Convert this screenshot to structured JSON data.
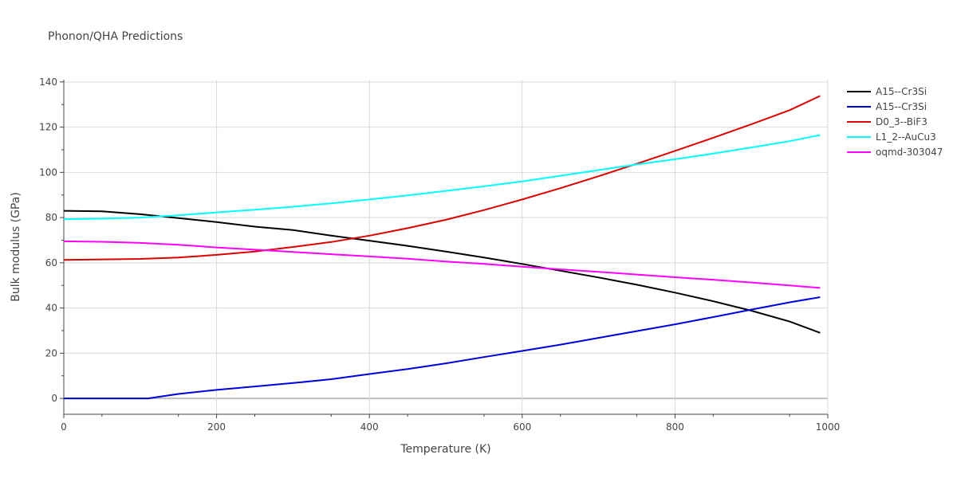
{
  "chart_data": {
    "type": "line",
    "title": "Phonon/QHA Predictions",
    "xlabel": "Temperature (K)",
    "ylabel": "Bulk modulus (GPa)",
    "xlim": [
      0,
      1000
    ],
    "ylim": [
      -7,
      141
    ],
    "xticks": [
      0,
      200,
      400,
      600,
      800,
      1000
    ],
    "yticks": [
      0,
      20,
      40,
      60,
      80,
      100,
      120,
      140
    ],
    "grid": true,
    "legend_position": "top-right",
    "series": [
      {
        "name": "A15--Cr3Si",
        "color": "#000000",
        "x": [
          0,
          50,
          100,
          150,
          200,
          250,
          300,
          350,
          400,
          450,
          500,
          550,
          600,
          650,
          700,
          750,
          800,
          850,
          900,
          950,
          990
        ],
        "y": [
          83,
          82.8,
          81.5,
          79.8,
          78,
          76,
          74.5,
          72,
          69.8,
          67.5,
          65,
          62.3,
          59.5,
          56.5,
          53.5,
          50.3,
          46.8,
          43,
          38.8,
          34,
          29
        ]
      },
      {
        "name": "A15--Cr3Si",
        "color": "#0000dd",
        "x": [
          0,
          50,
          100,
          110,
          150,
          200,
          250,
          300,
          350,
          400,
          450,
          500,
          550,
          600,
          650,
          700,
          750,
          800,
          850,
          900,
          950,
          990
        ],
        "y": [
          0,
          0,
          0,
          0,
          2,
          3.8,
          5.3,
          6.8,
          8.5,
          10.8,
          13,
          15.5,
          18.3,
          21,
          23.8,
          26.8,
          29.8,
          32.8,
          36,
          39.3,
          42.5,
          44.8
        ]
      },
      {
        "name": "D0_3--BiF3",
        "color": "#dd0000",
        "x": [
          0,
          50,
          100,
          150,
          200,
          250,
          300,
          350,
          400,
          450,
          500,
          550,
          600,
          650,
          700,
          750,
          800,
          850,
          900,
          950,
          990
        ],
        "y": [
          61.3,
          61.5,
          61.7,
          62.3,
          63.5,
          65,
          67,
          69.2,
          72,
          75.3,
          79,
          83.3,
          88,
          93,
          98.3,
          103.8,
          109.5,
          115.3,
          121.3,
          127.5,
          133.8
        ]
      },
      {
        "name": "L1_2--AuCu3",
        "color": "#00ffff",
        "x": [
          0,
          50,
          100,
          150,
          200,
          250,
          300,
          350,
          400,
          450,
          500,
          550,
          600,
          650,
          700,
          750,
          800,
          850,
          900,
          950,
          990
        ],
        "y": [
          79.3,
          79.5,
          80,
          81,
          82.3,
          83.5,
          84.8,
          86.3,
          88,
          89.8,
          91.8,
          93.8,
          96,
          98.5,
          101,
          103.5,
          105.8,
          108.3,
          111,
          113.8,
          116.5
        ]
      },
      {
        "name": "oqmd-303047",
        "color": "#ff00ff",
        "x": [
          0,
          50,
          100,
          150,
          200,
          250,
          300,
          350,
          400,
          450,
          500,
          550,
          600,
          650,
          700,
          750,
          800,
          850,
          900,
          950,
          990
        ],
        "y": [
          69.5,
          69.3,
          68.8,
          68,
          66.8,
          65.8,
          64.8,
          63.8,
          62.8,
          61.8,
          60.6,
          59.5,
          58.3,
          57.1,
          56,
          54.8,
          53.6,
          52.5,
          51.3,
          50,
          48.9
        ]
      }
    ]
  }
}
